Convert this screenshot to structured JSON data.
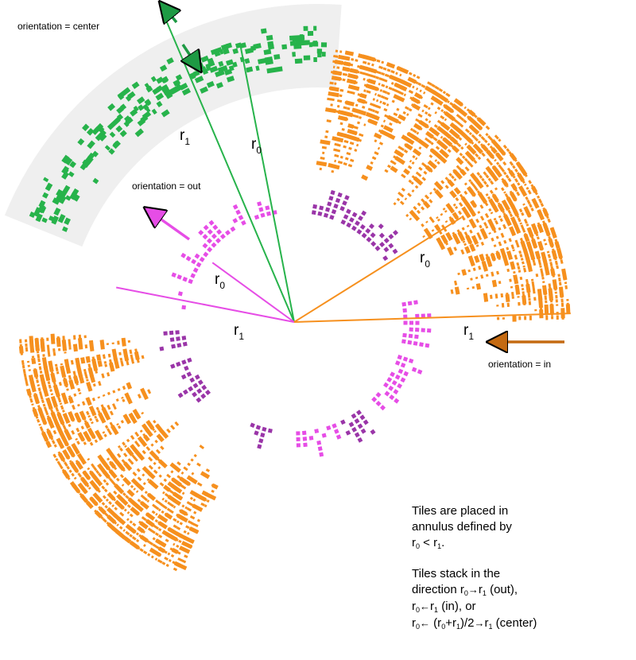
{
  "colors": {
    "orange": "#f6901e",
    "green": "#27b34b",
    "magenta": "#e64de6",
    "purple": "#9a35a8",
    "band": "#efefef",
    "arrow_green": "#1e9a44",
    "arrow_orange": "#c46a12"
  },
  "labels": {
    "center": "orientation = center",
    "out": "orientation = out",
    "in": "orientation = in"
  },
  "radii": {
    "r": "r",
    "sub0": "0",
    "sub1": "1"
  },
  "caption": {
    "line1": "Tiles are placed in",
    "line2": "annulus defined by",
    "lt": " < ",
    "period": ".",
    "line3": "Tiles stack in the",
    "direction": "direction ",
    "out": " (out),",
    "in": " (in), or",
    "mid_a": " (r",
    "mid_plus": "+r",
    "mid_b": ")/2",
    "center": " (center)",
    "arrow_right": "→",
    "arrow_left": "←"
  },
  "icons": [
    "double-arrow-icon",
    "arrow-out-icon",
    "arrow-in-icon"
  ]
}
